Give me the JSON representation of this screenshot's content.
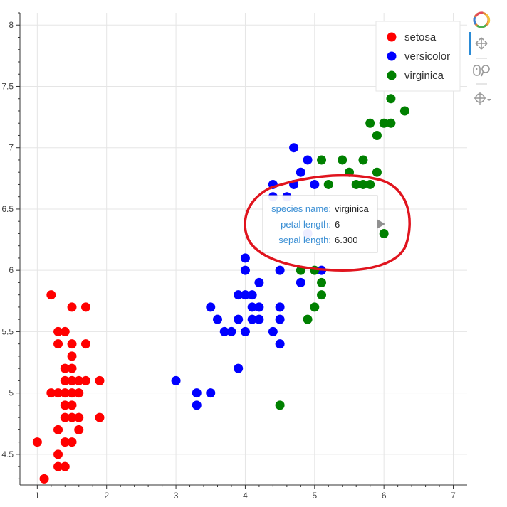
{
  "chart_data": {
    "type": "scatter",
    "xlim": [
      0.75,
      7.2
    ],
    "ylim": [
      4.25,
      8.1
    ],
    "x_ticks": [
      1,
      2,
      3,
      4,
      5,
      6,
      7
    ],
    "y_ticks": [
      4.5,
      5,
      5.5,
      6,
      6.5,
      7,
      7.5,
      8
    ],
    "x_tick_labels": [
      "1",
      "2",
      "3",
      "4",
      "5",
      "6",
      "7"
    ],
    "y_tick_labels": [
      "4.5",
      "5",
      "5.5",
      "6",
      "6.5",
      "7",
      "7.5",
      "8"
    ],
    "grid": true,
    "legend_position": "top-right",
    "series": [
      {
        "name": "setosa",
        "color": "#ff0000",
        "points": [
          [
            1.0,
            4.6
          ],
          [
            1.1,
            4.3
          ],
          [
            1.2,
            5.8
          ],
          [
            1.2,
            5.0
          ],
          [
            1.3,
            5.5
          ],
          [
            1.3,
            5.4
          ],
          [
            1.3,
            5.0
          ],
          [
            1.3,
            4.7
          ],
          [
            1.3,
            4.5
          ],
          [
            1.3,
            4.4
          ],
          [
            1.4,
            5.5
          ],
          [
            1.4,
            5.2
          ],
          [
            1.4,
            5.1
          ],
          [
            1.4,
            5.0
          ],
          [
            1.4,
            4.9
          ],
          [
            1.4,
            4.8
          ],
          [
            1.4,
            4.6
          ],
          [
            1.4,
            4.4
          ],
          [
            1.5,
            5.7
          ],
          [
            1.5,
            5.4
          ],
          [
            1.5,
            5.3
          ],
          [
            1.5,
            5.2
          ],
          [
            1.5,
            5.1
          ],
          [
            1.5,
            5.0
          ],
          [
            1.5,
            4.9
          ],
          [
            1.5,
            4.8
          ],
          [
            1.5,
            4.6
          ],
          [
            1.6,
            5.1
          ],
          [
            1.6,
            5.0
          ],
          [
            1.6,
            4.8
          ],
          [
            1.6,
            4.7
          ],
          [
            1.7,
            5.7
          ],
          [
            1.7,
            5.4
          ],
          [
            1.7,
            5.1
          ],
          [
            1.9,
            5.1
          ],
          [
            1.9,
            4.8
          ]
        ]
      },
      {
        "name": "versicolor",
        "color": "#0000ff",
        "points": [
          [
            3.0,
            5.1
          ],
          [
            3.3,
            5.0
          ],
          [
            3.3,
            4.9
          ],
          [
            3.5,
            5.7
          ],
          [
            3.5,
            5.0
          ],
          [
            3.6,
            5.6
          ],
          [
            3.7,
            5.5
          ],
          [
            3.8,
            5.5
          ],
          [
            3.9,
            5.8
          ],
          [
            3.9,
            5.6
          ],
          [
            3.9,
            5.2
          ],
          [
            4.0,
            6.1
          ],
          [
            4.0,
            6.0
          ],
          [
            4.0,
            5.8
          ],
          [
            4.0,
            5.5
          ],
          [
            4.1,
            5.8
          ],
          [
            4.1,
            5.7
          ],
          [
            4.1,
            5.6
          ],
          [
            4.2,
            5.9
          ],
          [
            4.2,
            5.7
          ],
          [
            4.2,
            5.6
          ],
          [
            4.4,
            6.7
          ],
          [
            4.4,
            6.6
          ],
          [
            4.4,
            5.5
          ],
          [
            4.5,
            6.0
          ],
          [
            4.5,
            5.7
          ],
          [
            4.5,
            5.6
          ],
          [
            4.5,
            5.4
          ],
          [
            4.6,
            6.6
          ],
          [
            4.7,
            7.0
          ],
          [
            4.7,
            6.7
          ],
          [
            4.8,
            6.8
          ],
          [
            4.8,
            5.9
          ],
          [
            4.9,
            6.9
          ],
          [
            4.9,
            6.3
          ],
          [
            5.0,
            6.7
          ],
          [
            5.1,
            6.0
          ]
        ]
      },
      {
        "name": "virginica",
        "color": "#008000",
        "points": [
          [
            4.5,
            4.9
          ],
          [
            4.8,
            6.0
          ],
          [
            4.9,
            5.6
          ],
          [
            5.0,
            6.0
          ],
          [
            5.0,
            5.7
          ],
          [
            5.1,
            6.9
          ],
          [
            5.1,
            5.9
          ],
          [
            5.1,
            5.8
          ],
          [
            5.2,
            6.7
          ],
          [
            5.4,
            6.9
          ],
          [
            5.5,
            6.8
          ],
          [
            5.6,
            6.7
          ],
          [
            5.7,
            6.9
          ],
          [
            5.7,
            6.7
          ],
          [
            5.8,
            6.7
          ],
          [
            5.8,
            7.2
          ],
          [
            5.9,
            6.8
          ],
          [
            5.9,
            7.1
          ],
          [
            6.0,
            7.2
          ],
          [
            6.0,
            6.3
          ],
          [
            6.1,
            7.2
          ],
          [
            6.1,
            7.4
          ],
          [
            6.3,
            7.3
          ],
          [
            6.6,
            7.6
          ]
        ]
      }
    ]
  },
  "tooltip": {
    "rows": [
      {
        "key": "species name:",
        "value": "virginica"
      },
      {
        "key": "petal length:",
        "value": "6"
      },
      {
        "key": "sepal length:",
        "value": "6.300"
      }
    ]
  },
  "toolbar": {
    "logo_icon": "bokeh-logo-icon",
    "pan_icon": "pan-move-icon",
    "zoom_icon": "wheel-zoom-icon",
    "hover_icon": "hover-crosshair-icon"
  },
  "annotation": {
    "color": "#e0141e"
  }
}
